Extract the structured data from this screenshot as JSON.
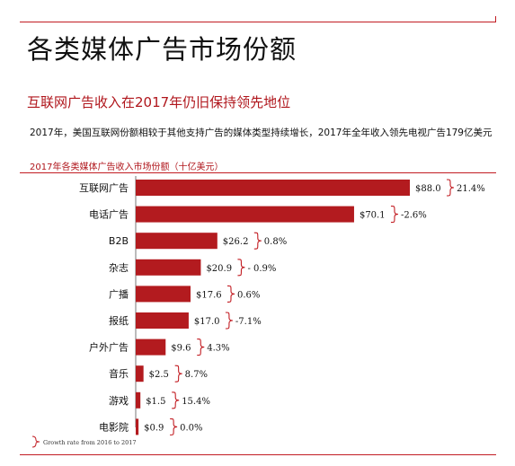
{
  "header": {
    "title": "各类媒体广告市场份额",
    "subtitle": "互联网广告收入在2017年仍旧保持领先地位",
    "description": "2017年，美国互联网份额相较于其他支持广告的媒体类型持续增长，2017年全年收入领先电视广告179亿美元"
  },
  "chart_data": {
    "type": "bar",
    "orientation": "horizontal",
    "title": "2017年各类媒体广告收入市场份额（十亿美元）",
    "categories": [
      "互联网广告",
      "电话广告",
      "B2B",
      "杂志",
      "广播",
      "报纸",
      "户外广告",
      "音乐",
      "游戏",
      "电影院"
    ],
    "values": [
      88.0,
      70.1,
      26.2,
      20.9,
      17.6,
      17.0,
      9.6,
      2.5,
      1.5,
      0.9
    ],
    "value_labels": [
      "$88.0",
      "$70.1",
      "$26.2",
      "$20.9",
      "$17.6",
      "$17.0",
      "$9.6",
      "$2.5",
      "$1.5",
      "$0.9"
    ],
    "growth_rates": [
      "21.4%",
      "-2.6%",
      "0.8%",
      "- 0.9%",
      "0.6%",
      "-7.1%",
      "4.3%",
      "8.7%",
      "15.4%",
      "0.0%"
    ],
    "legend": "Growth rate from 2016 to 2017",
    "bar_color": "#b31b1f",
    "accent_color": "#c21c22",
    "xlim": [
      0,
      88
    ]
  }
}
